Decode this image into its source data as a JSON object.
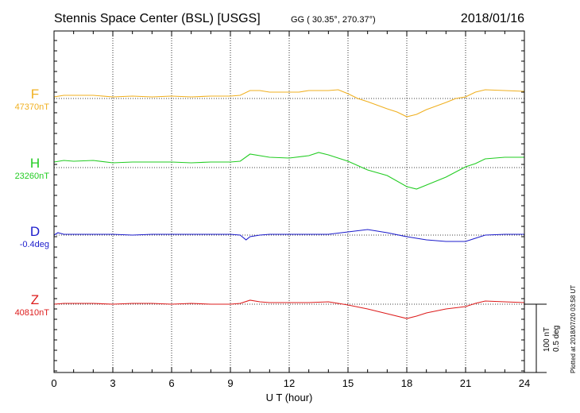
{
  "chart_data": {
    "type": "line",
    "title": "Stennis Space Center (BSL)  [USGS]",
    "coords": "GG ( 30.35°, 270.37°)",
    "date": "2018/01/16",
    "xlabel": "U T (hour)",
    "xlim": [
      0,
      24
    ],
    "xticks": [
      "0",
      "3",
      "6",
      "9",
      "12",
      "15",
      "18",
      "21",
      "24"
    ],
    "grid": true,
    "plotted_note": "Plotted at 2018/07/20 03:58 UT",
    "scale": {
      "line1": "100 nT",
      "line2": "0.5 deg"
    },
    "series": [
      {
        "name": "F",
        "baseline": "47370nT",
        "color": "#f0b020",
        "points": [
          [
            0,
            -2
          ],
          [
            0.5,
            -4
          ],
          [
            1,
            -4
          ],
          [
            2,
            -4
          ],
          [
            3,
            -2
          ],
          [
            4,
            -3
          ],
          [
            5,
            -2
          ],
          [
            6,
            -3
          ],
          [
            7,
            -2
          ],
          [
            8,
            -3
          ],
          [
            9,
            -3
          ],
          [
            9.5,
            -4
          ],
          [
            10,
            -10
          ],
          [
            10.5,
            -10
          ],
          [
            11,
            -8
          ],
          [
            12,
            -8
          ],
          [
            12.5,
            -8
          ],
          [
            13,
            -10
          ],
          [
            14,
            -10
          ],
          [
            14.5,
            -11
          ],
          [
            15,
            -6
          ],
          [
            15.5,
            0
          ],
          [
            16,
            4
          ],
          [
            17,
            13
          ],
          [
            17.5,
            17
          ],
          [
            18,
            23
          ],
          [
            18.5,
            20
          ],
          [
            19,
            14
          ],
          [
            20,
            5
          ],
          [
            20.5,
            0
          ],
          [
            21,
            -2
          ],
          [
            21.5,
            -8
          ],
          [
            22,
            -11
          ],
          [
            23,
            -10
          ],
          [
            24,
            -9
          ]
        ]
      },
      {
        "name": "H",
        "baseline": "23260nT",
        "color": "#22cc22",
        "points": [
          [
            0,
            -7
          ],
          [
            0.5,
            -9
          ],
          [
            1,
            -8
          ],
          [
            2,
            -9
          ],
          [
            3,
            -6
          ],
          [
            4,
            -7
          ],
          [
            5,
            -7
          ],
          [
            6,
            -7
          ],
          [
            7,
            -6
          ],
          [
            8,
            -7
          ],
          [
            9,
            -7
          ],
          [
            9.5,
            -8
          ],
          [
            10,
            -17
          ],
          [
            11,
            -13
          ],
          [
            12,
            -12
          ],
          [
            13,
            -15
          ],
          [
            13.5,
            -19
          ],
          [
            14,
            -16
          ],
          [
            15,
            -8
          ],
          [
            16,
            3
          ],
          [
            17,
            10
          ],
          [
            18,
            24
          ],
          [
            18.5,
            27
          ],
          [
            19,
            22
          ],
          [
            20,
            12
          ],
          [
            21,
            -1
          ],
          [
            21.5,
            -5
          ],
          [
            22,
            -11
          ],
          [
            23,
            -13
          ],
          [
            24,
            -13
          ]
        ]
      },
      {
        "name": "D",
        "baseline": "-0.4deg",
        "color": "#1c1ccc",
        "points": [
          [
            0,
            0
          ],
          [
            0.2,
            -3
          ],
          [
            0.5,
            -1
          ],
          [
            1,
            -1
          ],
          [
            2,
            -1
          ],
          [
            3,
            -1
          ],
          [
            4,
            0
          ],
          [
            5,
            -1
          ],
          [
            6,
            -1
          ],
          [
            7,
            -1
          ],
          [
            8,
            -1
          ],
          [
            9,
            -1
          ],
          [
            9.5,
            0
          ],
          [
            9.8,
            6
          ],
          [
            10,
            2
          ],
          [
            10.5,
            0
          ],
          [
            11,
            -1
          ],
          [
            12,
            -1
          ],
          [
            13,
            -1
          ],
          [
            14,
            -1
          ],
          [
            15,
            -4
          ],
          [
            16,
            -7
          ],
          [
            17,
            -3
          ],
          [
            18,
            2
          ],
          [
            19,
            6
          ],
          [
            20,
            8
          ],
          [
            21,
            8
          ],
          [
            21.5,
            4
          ],
          [
            22,
            0
          ],
          [
            23,
            -1
          ],
          [
            24,
            -1
          ]
        ]
      },
      {
        "name": "Z",
        "baseline": "40810nT",
        "color": "#dd1c1c",
        "points": [
          [
            0,
            0
          ],
          [
            0.5,
            -1
          ],
          [
            1,
            -1
          ],
          [
            2,
            -1
          ],
          [
            3,
            0
          ],
          [
            4,
            -1
          ],
          [
            5,
            -1
          ],
          [
            6,
            0
          ],
          [
            7,
            -1
          ],
          [
            8,
            0
          ],
          [
            9,
            0
          ],
          [
            9.5,
            -1
          ],
          [
            10,
            -5
          ],
          [
            10.5,
            -3
          ],
          [
            11,
            -2
          ],
          [
            12,
            -2
          ],
          [
            13,
            -2
          ],
          [
            14,
            -3
          ],
          [
            15,
            1
          ],
          [
            16,
            6
          ],
          [
            17,
            12
          ],
          [
            18,
            18
          ],
          [
            18.5,
            15
          ],
          [
            19,
            11
          ],
          [
            20,
            6
          ],
          [
            21,
            3
          ],
          [
            21.5,
            -1
          ],
          [
            22,
            -4
          ],
          [
            23,
            -3
          ],
          [
            24,
            -2
          ]
        ]
      }
    ]
  }
}
